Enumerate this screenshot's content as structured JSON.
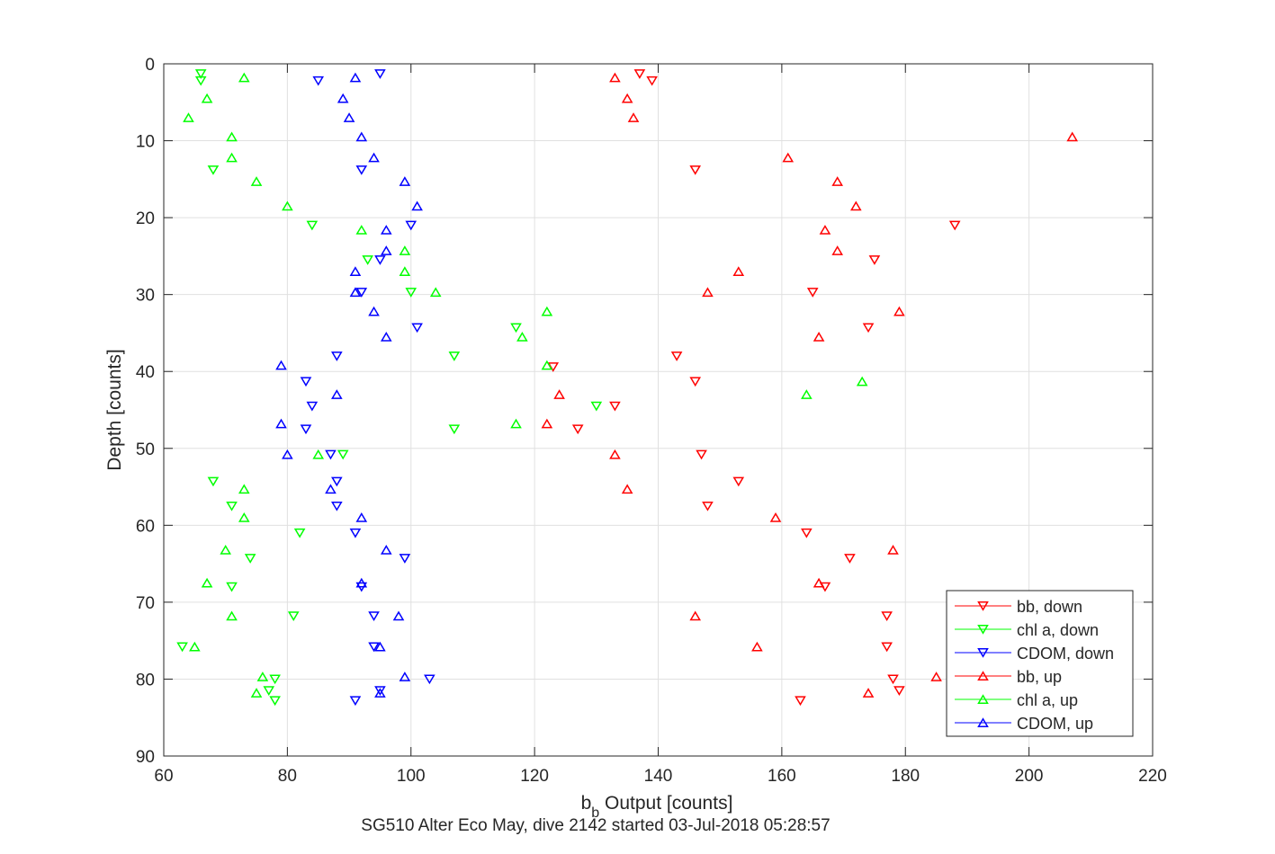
{
  "chart_data": {
    "type": "scatter",
    "title": "SG510 Alter Eco May, dive 2142 started 03-Jul-2018 05:28:57",
    "xlabel_main": "b",
    "xlabel_sub": "b",
    "xlabel_rest": " Output [counts]",
    "ylabel": "Depth [counts]",
    "xlim": [
      60,
      220
    ],
    "ylim": [
      0,
      90
    ],
    "y_reversed": true,
    "grid": true,
    "legend_position": "bottom-right",
    "x_ticks": [
      "60",
      "80",
      "100",
      "120",
      "140",
      "160",
      "180",
      "200",
      "220"
    ],
    "y_ticks": [
      "0",
      "10",
      "20",
      "30",
      "40",
      "50",
      "60",
      "70",
      "80",
      "90"
    ],
    "series": [
      {
        "name": "bb, down",
        "color": "#ff0000",
        "marker": "triangle-down",
        "points": [
          [
            137,
            1.3
          ],
          [
            139,
            2.2
          ],
          [
            146,
            13.8
          ],
          [
            188,
            21
          ],
          [
            175,
            25.5
          ],
          [
            165,
            29.7
          ],
          [
            174,
            34.3
          ],
          [
            143,
            38
          ],
          [
            146,
            41.3
          ],
          [
            133,
            44.5
          ],
          [
            127,
            47.5
          ],
          [
            147,
            50.8
          ],
          [
            153,
            54.3
          ],
          [
            148,
            57.5
          ],
          [
            164,
            61
          ],
          [
            171,
            64.3
          ],
          [
            167,
            68
          ],
          [
            177,
            71.8
          ],
          [
            177,
            75.8
          ],
          [
            178,
            80
          ],
          [
            179,
            81.5
          ],
          [
            163,
            82.8
          ],
          [
            123,
            39.4
          ]
        ]
      },
      {
        "name": "chl a, down",
        "color": "#00ff00",
        "marker": "triangle-down",
        "points": [
          [
            66,
            1.3
          ],
          [
            66,
            2.2
          ],
          [
            68,
            13.8
          ],
          [
            84,
            21
          ],
          [
            93,
            25.5
          ],
          [
            100,
            29.7
          ],
          [
            117,
            34.3
          ],
          [
            107,
            38
          ],
          [
            130,
            44.5
          ],
          [
            107,
            47.5
          ],
          [
            89,
            50.8
          ],
          [
            68,
            54.3
          ],
          [
            71,
            57.5
          ],
          [
            82,
            61
          ],
          [
            74,
            64.3
          ],
          [
            71,
            68
          ],
          [
            81,
            71.8
          ],
          [
            63,
            75.8
          ],
          [
            78,
            80
          ],
          [
            77,
            81.5
          ],
          [
            78,
            82.8
          ]
        ]
      },
      {
        "name": "CDOM, down",
        "color": "#0000ff",
        "marker": "triangle-down",
        "points": [
          [
            95,
            1.3
          ],
          [
            85,
            2.2
          ],
          [
            92,
            13.8
          ],
          [
            100,
            21
          ],
          [
            95,
            25.5
          ],
          [
            92,
            29.7
          ],
          [
            101,
            34.3
          ],
          [
            88,
            38
          ],
          [
            83,
            41.3
          ],
          [
            84,
            44.5
          ],
          [
            83,
            47.5
          ],
          [
            87,
            50.8
          ],
          [
            88,
            54.3
          ],
          [
            88,
            57.5
          ],
          [
            91,
            61
          ],
          [
            99,
            64.3
          ],
          [
            92,
            68
          ],
          [
            94,
            71.8
          ],
          [
            94,
            75.8
          ],
          [
            103,
            80
          ],
          [
            95,
            81.5
          ],
          [
            91,
            82.8
          ]
        ]
      },
      {
        "name": "bb, up",
        "color": "#ff0000",
        "marker": "triangle-up",
        "points": [
          [
            133,
            1.8
          ],
          [
            135,
            4.5
          ],
          [
            136,
            7
          ],
          [
            207,
            9.5
          ],
          [
            161,
            12.2
          ],
          [
            169,
            15.3
          ],
          [
            172,
            18.5
          ],
          [
            167,
            21.6
          ],
          [
            169,
            24.3
          ],
          [
            153,
            27
          ],
          [
            148,
            29.7
          ],
          [
            179,
            32.2
          ],
          [
            166,
            35.5
          ],
          [
            124,
            43
          ],
          [
            122,
            46.8
          ],
          [
            133,
            50.8
          ],
          [
            135,
            55.3
          ],
          [
            159,
            59
          ],
          [
            178,
            63.2
          ],
          [
            166,
            67.5
          ],
          [
            146,
            71.8
          ],
          [
            156,
            75.8
          ],
          [
            185,
            79.7
          ],
          [
            174,
            81.8
          ]
        ]
      },
      {
        "name": "chl a, up",
        "color": "#00ff00",
        "marker": "triangle-up",
        "points": [
          [
            73,
            1.8
          ],
          [
            67,
            4.5
          ],
          [
            64,
            7
          ],
          [
            71,
            9.5
          ],
          [
            71,
            12.2
          ],
          [
            75,
            15.3
          ],
          [
            80,
            18.5
          ],
          [
            92,
            21.6
          ],
          [
            99,
            24.3
          ],
          [
            99,
            27
          ],
          [
            104,
            29.7
          ],
          [
            122,
            32.2
          ],
          [
            118,
            35.5
          ],
          [
            122,
            39.2
          ],
          [
            173,
            41.3
          ],
          [
            164,
            43
          ],
          [
            117,
            46.8
          ],
          [
            85,
            50.8
          ],
          [
            73,
            55.3
          ],
          [
            73,
            59
          ],
          [
            70,
            63.2
          ],
          [
            67,
            67.5
          ],
          [
            71,
            71.8
          ],
          [
            65,
            75.8
          ],
          [
            76,
            79.7
          ],
          [
            75,
            81.8
          ]
        ]
      },
      {
        "name": "CDOM, up",
        "color": "#0000ff",
        "marker": "triangle-up",
        "points": [
          [
            91,
            1.8
          ],
          [
            89,
            4.5
          ],
          [
            90,
            7
          ],
          [
            92,
            9.5
          ],
          [
            94,
            12.2
          ],
          [
            99,
            15.3
          ],
          [
            101,
            18.5
          ],
          [
            96,
            21.6
          ],
          [
            96,
            24.3
          ],
          [
            91,
            27
          ],
          [
            91,
            29.7
          ],
          [
            94,
            32.2
          ],
          [
            96,
            35.5
          ],
          [
            79,
            39.2
          ],
          [
            88,
            43
          ],
          [
            79,
            46.8
          ],
          [
            80,
            50.8
          ],
          [
            87,
            55.3
          ],
          [
            92,
            59
          ],
          [
            96,
            63.2
          ],
          [
            92,
            67.5
          ],
          [
            98,
            71.8
          ],
          [
            95,
            75.8
          ],
          [
            99,
            79.7
          ],
          [
            95,
            81.8
          ]
        ]
      }
    ]
  }
}
